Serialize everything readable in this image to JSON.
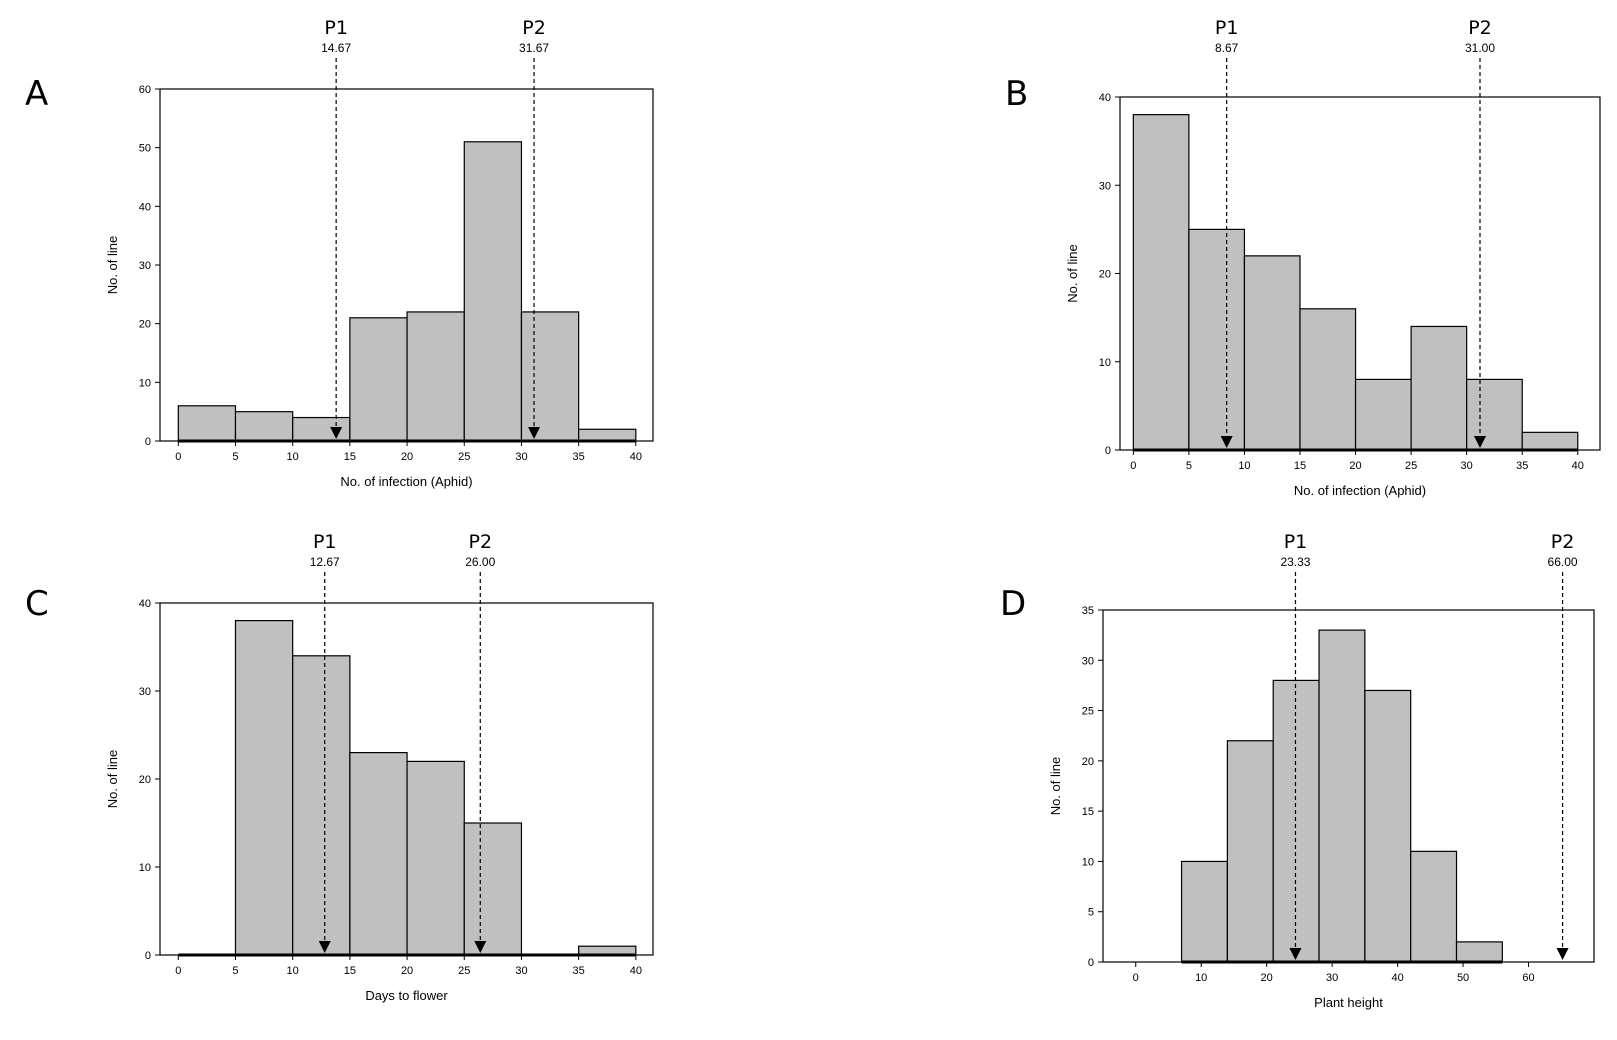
{
  "chart_data": [
    {
      "type": "bar",
      "panel": "A",
      "xlabel": "No. of infection (Aphid)",
      "ylabel": "No. of line",
      "xlim": [
        0,
        40
      ],
      "ylim": [
        0,
        60
      ],
      "xticks": [
        0,
        5,
        10,
        15,
        20,
        25,
        30,
        35,
        40
      ],
      "yticks": [
        0,
        10,
        20,
        30,
        40,
        50,
        60
      ],
      "bins": [
        {
          "from": 0,
          "to": 5,
          "value": 6
        },
        {
          "from": 5,
          "to": 10,
          "value": 5
        },
        {
          "from": 10,
          "to": 15,
          "value": 4
        },
        {
          "from": 15,
          "to": 20,
          "value": 21
        },
        {
          "from": 20,
          "to": 25,
          "value": 22
        },
        {
          "from": 25,
          "to": 30,
          "value": 51
        },
        {
          "from": 30,
          "to": 35,
          "value": 22
        },
        {
          "from": 35,
          "to": 40,
          "value": 2
        }
      ],
      "markers": [
        {
          "name": "P1",
          "label": "14.67",
          "x": 13.8
        },
        {
          "name": "P2",
          "label": "31.67",
          "x": 31.1
        }
      ],
      "grid": false
    },
    {
      "type": "bar",
      "panel": "B",
      "xlabel": "No. of infection (Aphid)",
      "ylabel": "No. of line",
      "xlim": [
        0,
        40
      ],
      "ylim": [
        0,
        40
      ],
      "xticks": [
        0,
        5,
        10,
        15,
        20,
        25,
        30,
        35,
        40
      ],
      "yticks": [
        0,
        10,
        20,
        30,
        40
      ],
      "bins": [
        {
          "from": 0,
          "to": 5,
          "value": 38
        },
        {
          "from": 5,
          "to": 10,
          "value": 25
        },
        {
          "from": 10,
          "to": 15,
          "value": 22
        },
        {
          "from": 15,
          "to": 20,
          "value": 16
        },
        {
          "from": 20,
          "to": 25,
          "value": 8
        },
        {
          "from": 25,
          "to": 30,
          "value": 14
        },
        {
          "from": 30,
          "to": 35,
          "value": 8
        },
        {
          "from": 35,
          "to": 40,
          "value": 2
        }
      ],
      "markers": [
        {
          "name": "P1",
          "label": "8.67",
          "x": 8.4
        },
        {
          "name": "P2",
          "label": "31.00",
          "x": 31.2
        }
      ],
      "grid": false
    },
    {
      "type": "bar",
      "panel": "C",
      "xlabel": "Days to flower",
      "ylabel": "No. of line",
      "xlim": [
        0,
        40
      ],
      "ylim": [
        0,
        40
      ],
      "xticks": [
        0,
        5,
        10,
        15,
        20,
        25,
        30,
        35,
        40
      ],
      "yticks": [
        0,
        10,
        20,
        30,
        40
      ],
      "bins": [
        {
          "from": 0,
          "to": 5,
          "value": 0
        },
        {
          "from": 5,
          "to": 10,
          "value": 38
        },
        {
          "from": 10,
          "to": 15,
          "value": 34
        },
        {
          "from": 15,
          "to": 20,
          "value": 23
        },
        {
          "from": 20,
          "to": 25,
          "value": 22
        },
        {
          "from": 25,
          "to": 30,
          "value": 15
        },
        {
          "from": 30,
          "to": 35,
          "value": 0
        },
        {
          "from": 35,
          "to": 40,
          "value": 1
        }
      ],
      "markers": [
        {
          "name": "P1",
          "label": "12.67",
          "x": 12.8
        },
        {
          "name": "P2",
          "label": "26.00",
          "x": 26.4
        }
      ],
      "grid": false
    },
    {
      "type": "bar",
      "panel": "D",
      "xlabel": "Plant height",
      "ylabel": "No. of line",
      "xlim": [
        -5,
        70
      ],
      "ylim": [
        0,
        35
      ],
      "xticks": [
        0,
        10,
        20,
        30,
        40,
        50,
        60
      ],
      "yticks": [
        0,
        5,
        10,
        15,
        20,
        25,
        30,
        35
      ],
      "bins": [
        {
          "from": 7,
          "to": 14,
          "value": 10
        },
        {
          "from": 14,
          "to": 21,
          "value": 22
        },
        {
          "from": 21,
          "to": 28,
          "value": 28
        },
        {
          "from": 28,
          "to": 35,
          "value": 33
        },
        {
          "from": 35,
          "to": 42,
          "value": 27
        },
        {
          "from": 42,
          "to": 49,
          "value": 11
        },
        {
          "from": 49,
          "to": 56,
          "value": 2
        }
      ],
      "markers": [
        {
          "name": "P1",
          "label": "23.33",
          "x": 24.4
        },
        {
          "name": "P2",
          "label": "66.00",
          "x": 65.2
        }
      ],
      "grid": false
    }
  ]
}
